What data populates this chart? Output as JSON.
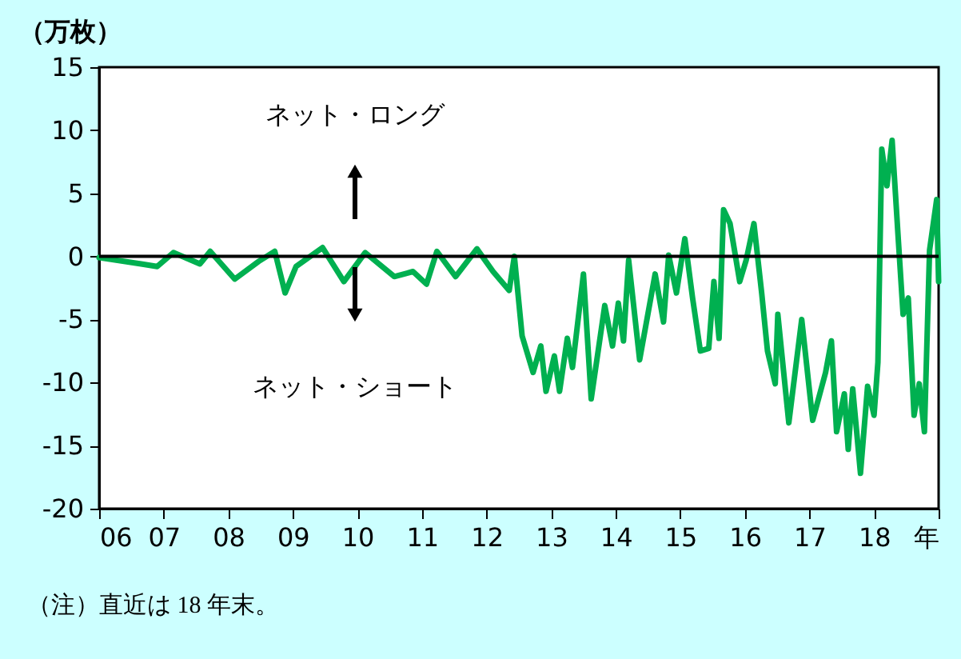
{
  "chart_data": {
    "type": "line",
    "ylabel": "（万枚）",
    "annotations": [
      "ネット・ロング",
      "ネット・ショート",
      "（注）直近は 18 年末。"
    ],
    "x": [
      2006.0,
      2006.65,
      2006.9,
      2007.15,
      2007.56,
      2007.72,
      2008.1,
      2008.47,
      2008.72,
      2008.88,
      2009.05,
      2009.46,
      2009.79,
      2010.12,
      2010.57,
      2010.86,
      2011.07,
      2011.23,
      2011.52,
      2011.85,
      2012.1,
      2012.35,
      2012.43,
      2012.55,
      2012.72,
      2012.84,
      2012.92,
      2013.05,
      2013.13,
      2013.25,
      2013.33,
      2013.5,
      2013.62,
      2013.83,
      2013.95,
      2014.04,
      2014.12,
      2014.2,
      2014.37,
      2014.61,
      2014.74,
      2014.82,
      2014.94,
      2015.07,
      2015.19,
      2015.31,
      2015.44,
      2015.52,
      2015.6,
      2015.67,
      2015.77,
      2015.92,
      2016.02,
      2016.14,
      2016.26,
      2016.35,
      2016.47,
      2016.51,
      2016.68,
      2016.88,
      2017.05,
      2017.25,
      2017.34,
      2017.42,
      2017.54,
      2017.6,
      2017.67,
      2017.79,
      2017.9,
      2018.0,
      2018.06,
      2018.12,
      2018.2,
      2018.28,
      2018.37,
      2018.45,
      2018.53,
      2018.62,
      2018.7,
      2018.78,
      2018.86,
      2018.97,
      2019.0
    ],
    "series": [
      {
        "color": "#00b050",
        "values": [
          -0.1,
          -0.6,
          -0.8,
          0.3,
          -0.6,
          0.4,
          -1.8,
          -0.4,
          0.4,
          -2.9,
          -0.8,
          0.7,
          -2.0,
          0.3,
          -1.6,
          -1.2,
          -2.2,
          0.4,
          -1.6,
          0.6,
          -1.2,
          -2.7,
          0,
          -6.3,
          -9.2,
          -7.1,
          -10.7,
          -7.9,
          -10.7,
          -6.5,
          -8.8,
          -1.4,
          -11.3,
          -3.9,
          -7.1,
          -3.7,
          -6.7,
          -0.3,
          -8.2,
          -1.4,
          -5.2,
          0.1,
          -2.9,
          1.4,
          -3.3,
          -7.5,
          -7.3,
          -2.0,
          -6.5,
          3.7,
          2.6,
          -2.0,
          -0.3,
          2.6,
          -2.9,
          -7.5,
          -10.1,
          -4.6,
          -13.2,
          -5.0,
          -13.0,
          -9.2,
          -6.7,
          -13.9,
          -10.9,
          -15.3,
          -10.5,
          -17.2,
          -10.3,
          -12.6,
          -8.4,
          8.5,
          5.6,
          9.2,
          1.8,
          -4.6,
          -3.3,
          -12.6,
          -10.1,
          -13.9,
          0.5,
          4.5,
          -2.0
        ]
      }
    ],
    "xlim": [
      2006,
      2019
    ],
    "xticks": [
      {
        "value": 2006,
        "label": "06"
      },
      {
        "value": 2007,
        "label": "07"
      },
      {
        "value": 2008,
        "label": "08"
      },
      {
        "value": 2009,
        "label": "09"
      },
      {
        "value": 2010,
        "label": "10"
      },
      {
        "value": 2011,
        "label": "11"
      },
      {
        "value": 2012,
        "label": "12"
      },
      {
        "value": 2013,
        "label": "13"
      },
      {
        "value": 2014,
        "label": "14"
      },
      {
        "value": 2015,
        "label": "15"
      },
      {
        "value": 2016,
        "label": "16"
      },
      {
        "value": 2017,
        "label": "17"
      },
      {
        "value": 2018,
        "label": "18"
      },
      {
        "value": 2019,
        "label": "年"
      }
    ],
    "ylim": [
      -20,
      15
    ],
    "yticks": [
      -20,
      -15,
      -10,
      -5,
      0,
      5,
      10,
      15
    ],
    "ref_lines": [
      {
        "axis": "y",
        "value": 0,
        "color": "#000000"
      }
    ],
    "grid": false,
    "marker": "none",
    "line_style": "solid"
  }
}
